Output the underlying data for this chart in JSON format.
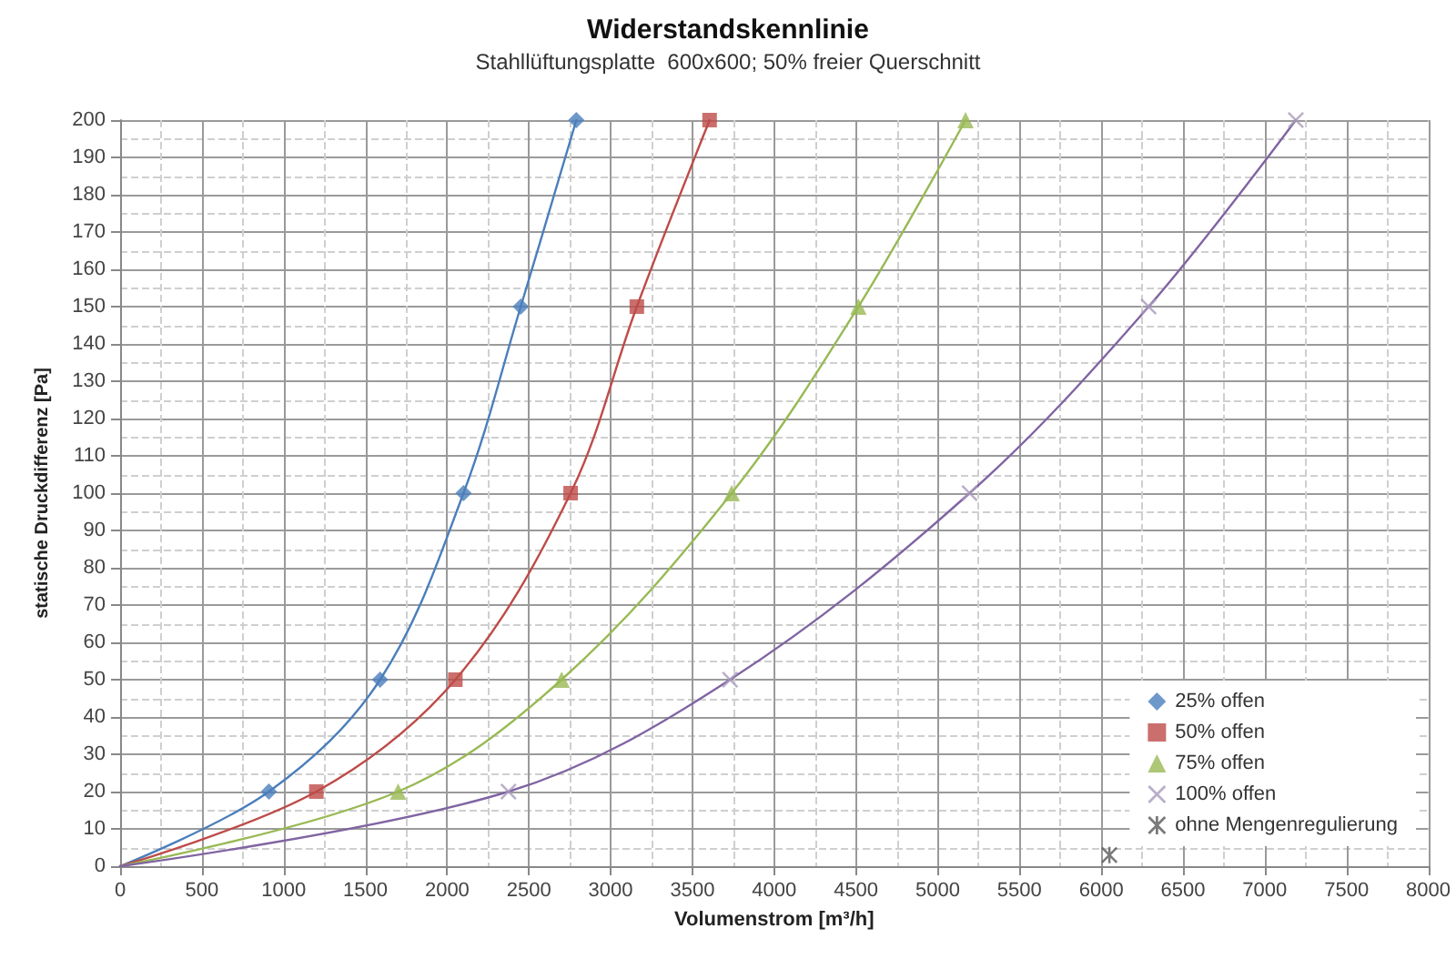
{
  "chart_data": {
    "type": "scatter",
    "title": "Widerstandskennlinie",
    "subtitle": "Stahllüftungsplatte  600x600; 50% freier Querschnitt",
    "xlabel": "Volumenstrom [m³/h]",
    "ylabel": "statische Druckdifferenz [Pa]",
    "xlim": [
      0,
      8000
    ],
    "xticks": [
      0,
      500,
      1000,
      1500,
      2000,
      2500,
      3000,
      3500,
      4000,
      4500,
      5000,
      5500,
      6000,
      6500,
      7000,
      7500,
      8000
    ],
    "ylim": [
      0,
      200
    ],
    "yticks": [
      0,
      10,
      20,
      30,
      40,
      50,
      60,
      70,
      80,
      90,
      100,
      110,
      120,
      130,
      140,
      150,
      160,
      170,
      180,
      190,
      200
    ],
    "grid": true,
    "legend": "bottom right",
    "series": [
      {
        "name": "25% offen",
        "color": "#4a7ebb",
        "marker": "diamond",
        "x": [
          910,
          1590,
          2100,
          2450,
          2790
        ],
        "values": [
          20,
          50,
          100,
          150,
          200
        ]
      },
      {
        "name": "50% offen",
        "color": "#be4b48",
        "marker": "square",
        "x": [
          1200,
          2050,
          2755,
          3160,
          3605
        ],
        "values": [
          20,
          50,
          100,
          150,
          200
        ]
      },
      {
        "name": "75% offen",
        "color": "#98b954",
        "marker": "triangle",
        "x": [
          1700,
          2700,
          3740,
          4515,
          5170
        ],
        "values": [
          20,
          50,
          100,
          150,
          200
        ]
      },
      {
        "name": "100% offen",
        "color": "#a99bbd",
        "marker": "cross",
        "x": [
          2375,
          3730,
          5195,
          6290,
          7190
        ],
        "values": [
          20,
          50,
          100,
          150,
          200
        ]
      },
      {
        "name": "ohne Mengenregulierung",
        "color": "#595959",
        "marker": "star",
        "x": [
          6050
        ],
        "values": [
          3
        ]
      },
      {
        "type": "line",
        "color": "#4a7ebb",
        "marker": "none",
        "x": [
          0,
          910,
          1590,
          2100,
          2450,
          2790
        ],
        "values": [
          0,
          20,
          50,
          100,
          150,
          200
        ]
      },
      {
        "type": "line",
        "color": "#be4b48",
        "marker": "none",
        "x": [
          0,
          1200,
          2050,
          2755,
          3160,
          3605
        ],
        "values": [
          0,
          20,
          50,
          100,
          150,
          200
        ]
      },
      {
        "type": "line",
        "color": "#98b954",
        "marker": "none",
        "x": [
          0,
          1700,
          2700,
          3740,
          4515,
          5170
        ],
        "values": [
          0,
          20,
          50,
          100,
          150,
          200
        ]
      },
      {
        "type": "line",
        "color": "#8064a2",
        "marker": "none",
        "x": [
          0,
          2375,
          3730,
          5195,
          6290,
          7190
        ],
        "values": [
          0,
          20,
          50,
          100,
          150,
          200
        ]
      }
    ]
  }
}
